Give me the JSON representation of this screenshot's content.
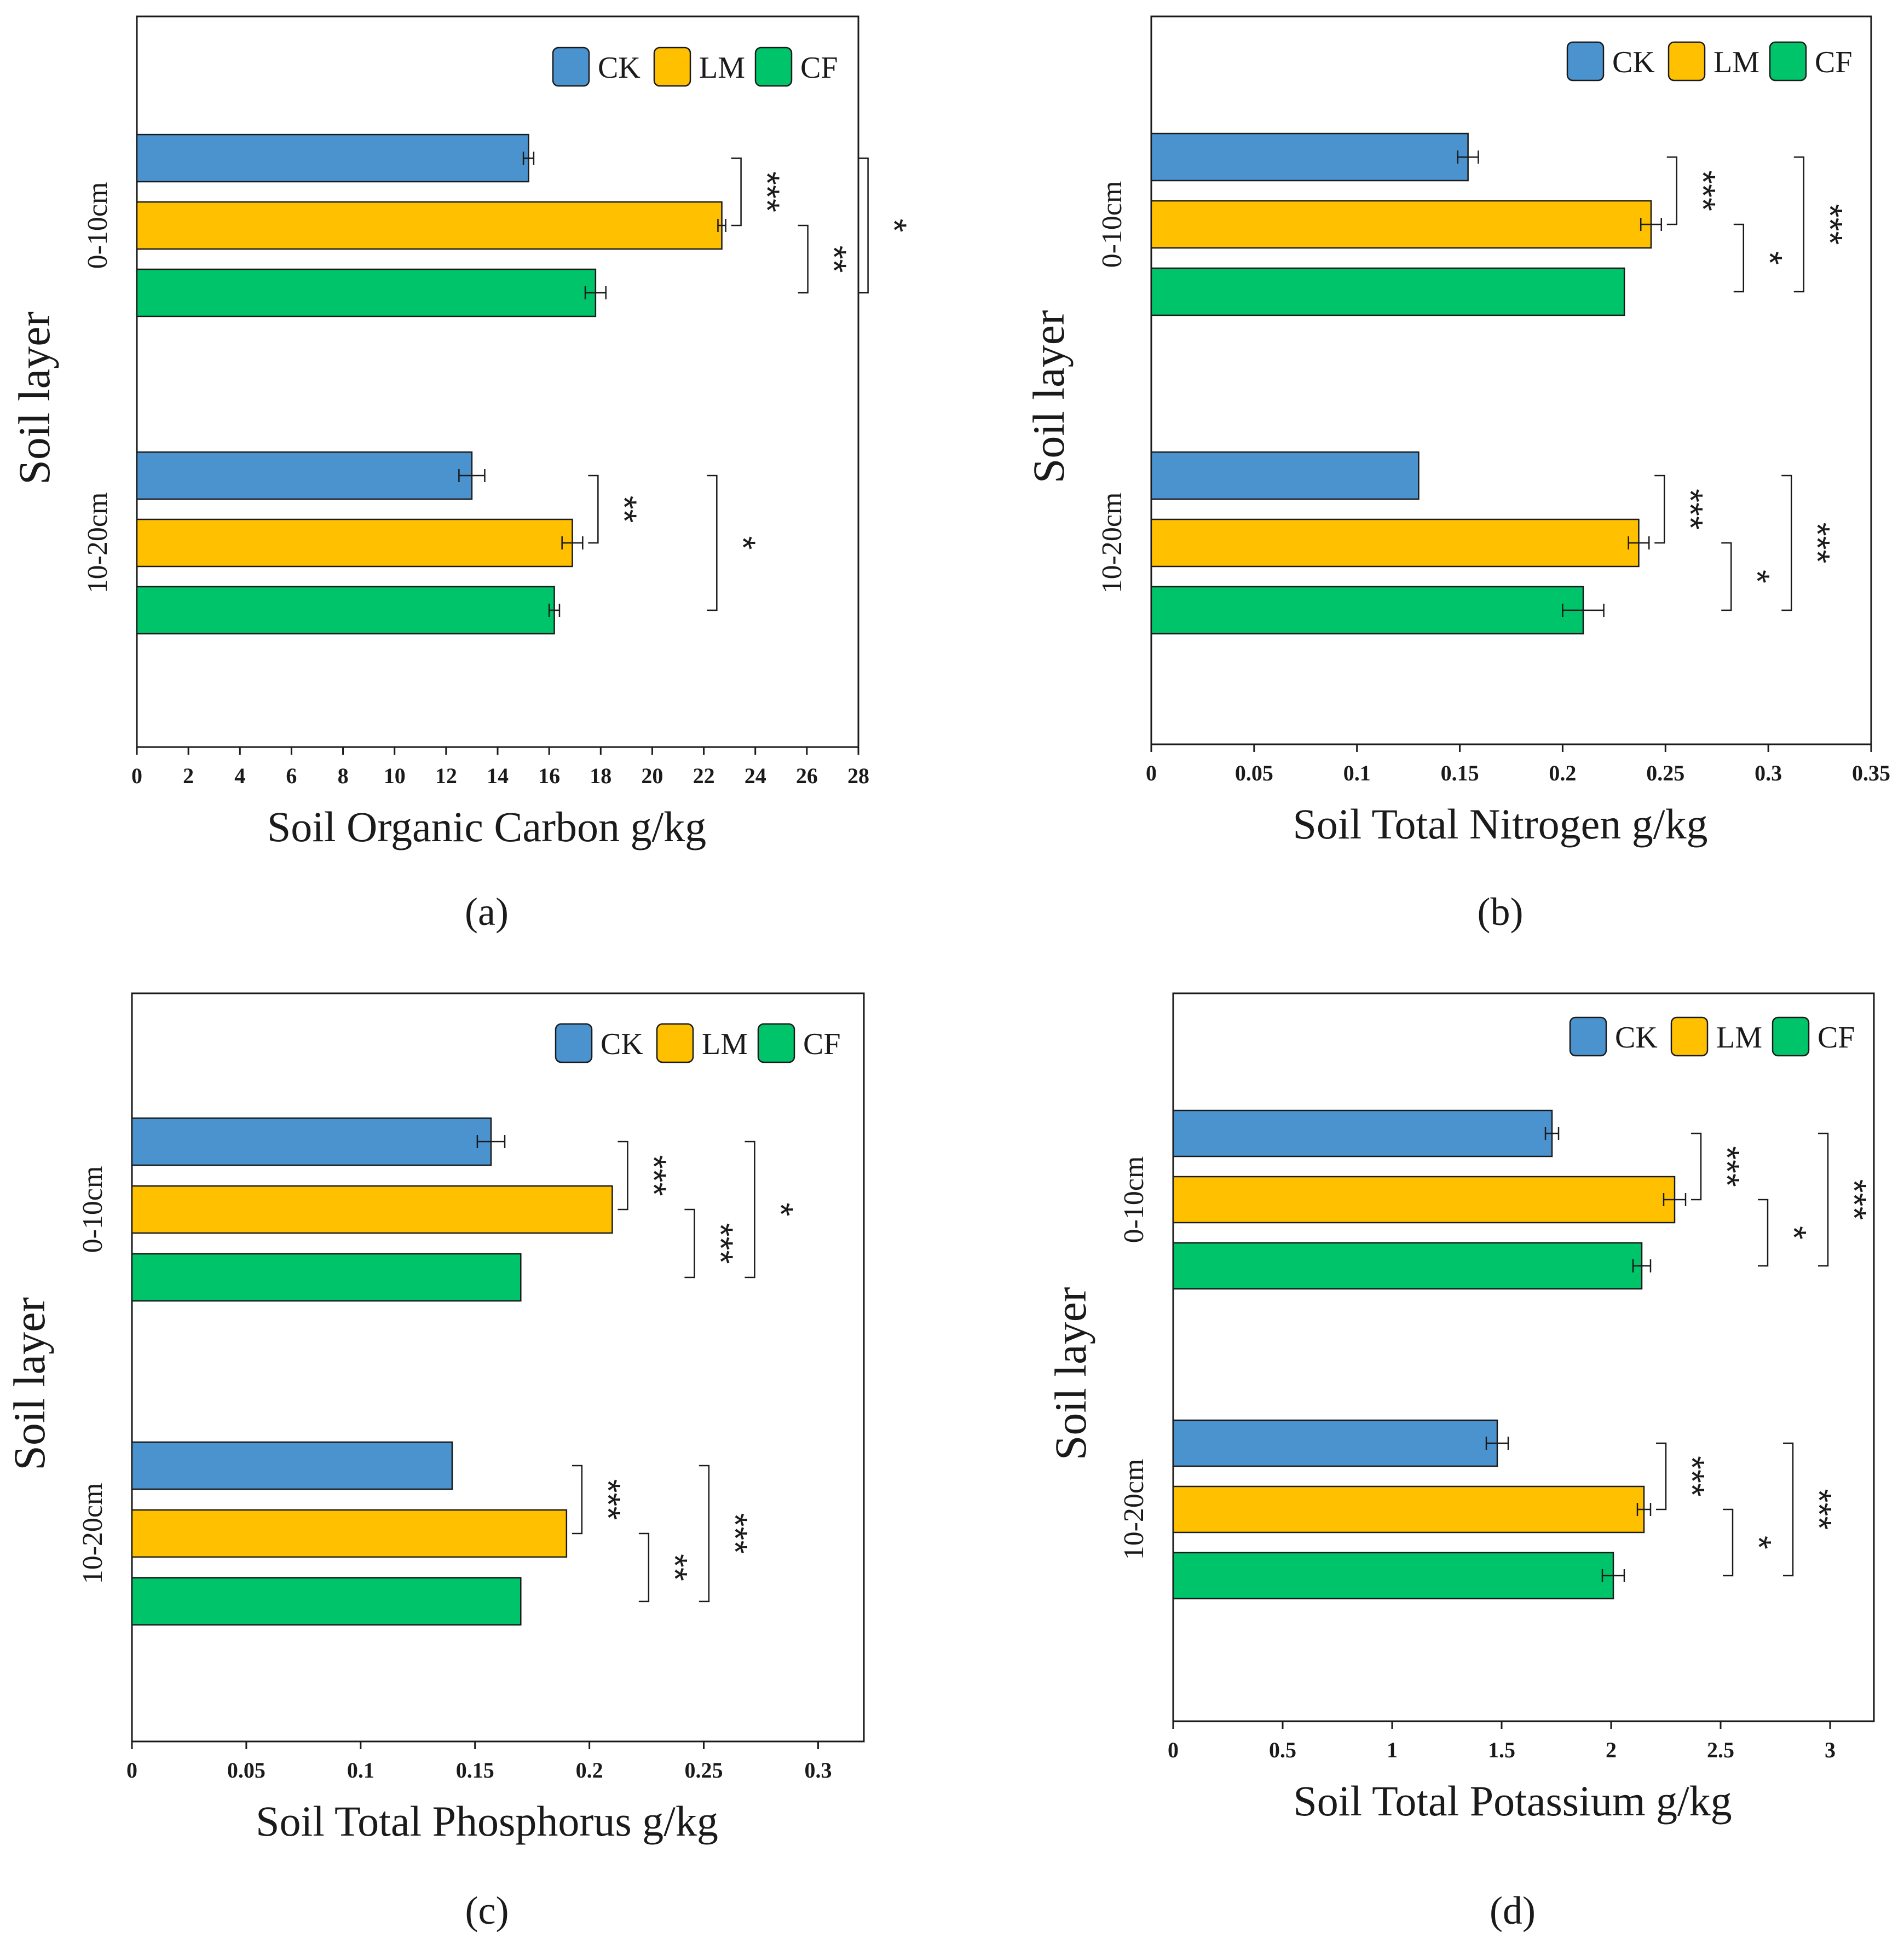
{
  "figure": {
    "caption_labels": [
      "(a)",
      "(b)",
      "(c)",
      "(d)"
    ]
  },
  "colors": {
    "CK": "#4a93cf",
    "LM": "#ffc000",
    "CF": "#00c46a",
    "axis": "#1a1a1a"
  },
  "chart_data": [
    {
      "type": "bar",
      "orientation": "horizontal",
      "panel_label": "(a)",
      "title": "",
      "xlabel": "Soil Organic Carbon g/kg",
      "ylabel": "Soil layer",
      "xlim": [
        0,
        28
      ],
      "xticks": [
        0,
        2,
        4,
        6,
        8,
        10,
        12,
        14,
        16,
        18,
        20,
        22,
        24,
        26,
        28
      ],
      "xtick_labels": [
        "0",
        "2",
        "4",
        "6",
        "8",
        "10",
        "12",
        "14",
        "16",
        "18",
        "20",
        "22",
        "24",
        "26",
        "28"
      ],
      "categories": [
        "0-10cm",
        "10-20cm"
      ],
      "legend": [
        "CK",
        "LM",
        "CF"
      ],
      "legend_position": "top-right",
      "series": [
        {
          "name": "CK",
          "values": [
            15.2,
            13.0
          ],
          "errors": [
            0.2,
            0.5
          ]
        },
        {
          "name": "LM",
          "values": [
            22.7,
            16.9
          ],
          "errors": [
            0.15,
            0.4
          ]
        },
        {
          "name": "CF",
          "values": [
            17.8,
            16.2
          ],
          "errors": [
            0.4,
            0.2
          ]
        }
      ],
      "significance": [
        {
          "layer": 0,
          "from": "CK",
          "to": "LM",
          "label": "***"
        },
        {
          "layer": 0,
          "from": "CK",
          "to": "CF",
          "label": "*"
        },
        {
          "layer": 0,
          "from": "LM",
          "to": "CF",
          "label": "**"
        },
        {
          "layer": 1,
          "from": "CK",
          "to": "LM",
          "label": "**"
        },
        {
          "layer": 1,
          "from": "CK",
          "to": "CF",
          "label": "*"
        }
      ]
    },
    {
      "type": "bar",
      "orientation": "horizontal",
      "panel_label": "(b)",
      "title": "",
      "xlabel": "Soil Total Nitrogen g/kg",
      "ylabel": "Soil layer",
      "xlim": [
        0,
        0.35
      ],
      "xticks": [
        0,
        0.05,
        0.1,
        0.15,
        0.2,
        0.25,
        0.3,
        0.35
      ],
      "xtick_labels": [
        "0",
        "0.05",
        "0.1",
        "0.15",
        "0.2",
        "0.25",
        "0.3",
        "0.35"
      ],
      "categories": [
        "0-10cm",
        "10-20cm"
      ],
      "legend": [
        "CK",
        "LM",
        "CF"
      ],
      "legend_position": "top-right",
      "series": [
        {
          "name": "CK",
          "values": [
            0.154,
            0.13
          ],
          "errors": [
            0.005,
            0.0
          ]
        },
        {
          "name": "LM",
          "values": [
            0.243,
            0.237
          ],
          "errors": [
            0.005,
            0.005
          ]
        },
        {
          "name": "CF",
          "values": [
            0.23,
            0.21
          ],
          "errors": [
            0.0,
            0.01
          ]
        }
      ],
      "significance": [
        {
          "layer": 0,
          "from": "CK",
          "to": "LM",
          "label": "***"
        },
        {
          "layer": 0,
          "from": "CK",
          "to": "CF",
          "label": "***"
        },
        {
          "layer": 0,
          "from": "LM",
          "to": "CF",
          "label": "*"
        },
        {
          "layer": 1,
          "from": "CK",
          "to": "LM",
          "label": "***"
        },
        {
          "layer": 1,
          "from": "CK",
          "to": "CF",
          "label": "***"
        },
        {
          "layer": 1,
          "from": "LM",
          "to": "CF",
          "label": "*"
        }
      ]
    },
    {
      "type": "bar",
      "orientation": "horizontal",
      "panel_label": "(c)",
      "title": "",
      "xlabel": "Soil Total Phosphorus g/kg",
      "ylabel": "Soil layer",
      "xlim": [
        0,
        0.32
      ],
      "xticks": [
        0,
        0.05,
        0.1,
        0.15,
        0.2,
        0.25,
        0.3
      ],
      "xtick_labels": [
        "0",
        "0.05",
        "0.1",
        "0.15",
        "0.2",
        "0.25",
        "0.3"
      ],
      "categories": [
        "0-10cm",
        "10-20cm"
      ],
      "legend": [
        "CK",
        "LM",
        "CF"
      ],
      "legend_position": "top-right",
      "series": [
        {
          "name": "CK",
          "values": [
            0.157,
            0.14
          ],
          "errors": [
            0.006,
            0.0
          ]
        },
        {
          "name": "LM",
          "values": [
            0.21,
            0.19
          ],
          "errors": [
            0.0,
            0.0
          ]
        },
        {
          "name": "CF",
          "values": [
            0.17,
            0.17
          ],
          "errors": [
            0.0,
            0.0
          ]
        }
      ],
      "significance": [
        {
          "layer": 0,
          "from": "CK",
          "to": "LM",
          "label": "***"
        },
        {
          "layer": 0,
          "from": "CK",
          "to": "CF",
          "label": "*"
        },
        {
          "layer": 0,
          "from": "LM",
          "to": "CF",
          "label": "***"
        },
        {
          "layer": 1,
          "from": "CK",
          "to": "LM",
          "label": "***"
        },
        {
          "layer": 1,
          "from": "CK",
          "to": "CF",
          "label": "***"
        },
        {
          "layer": 1,
          "from": "LM",
          "to": "CF",
          "label": "**"
        }
      ]
    },
    {
      "type": "bar",
      "orientation": "horizontal",
      "panel_label": "(d)",
      "title": "",
      "xlabel": "Soil Total Potassium g/kg",
      "ylabel": "Soil layer",
      "xlim": [
        0,
        3.2
      ],
      "xticks": [
        0,
        0.5,
        1,
        1.5,
        2,
        2.5,
        3
      ],
      "xtick_labels": [
        "0",
        "0.5",
        "1",
        "1.5",
        "2",
        "2.5",
        "3"
      ],
      "categories": [
        "0-10cm",
        "10-20cm"
      ],
      "legend": [
        "CK",
        "LM",
        "CF"
      ],
      "legend_position": "top-right",
      "series": [
        {
          "name": "CK",
          "values": [
            1.73,
            1.48
          ],
          "errors": [
            0.03,
            0.05
          ]
        },
        {
          "name": "LM",
          "values": [
            2.29,
            2.15
          ],
          "errors": [
            0.05,
            0.03
          ]
        },
        {
          "name": "CF",
          "values": [
            2.14,
            2.01
          ],
          "errors": [
            0.04,
            0.05
          ]
        }
      ],
      "significance": [
        {
          "layer": 0,
          "from": "CK",
          "to": "LM",
          "label": "***"
        },
        {
          "layer": 0,
          "from": "CK",
          "to": "CF",
          "label": "***"
        },
        {
          "layer": 0,
          "from": "LM",
          "to": "CF",
          "label": "*"
        },
        {
          "layer": 1,
          "from": "CK",
          "to": "LM",
          "label": "***"
        },
        {
          "layer": 1,
          "from": "CK",
          "to": "CF",
          "label": "***"
        },
        {
          "layer": 1,
          "from": "LM",
          "to": "CF",
          "label": "*"
        }
      ]
    }
  ]
}
